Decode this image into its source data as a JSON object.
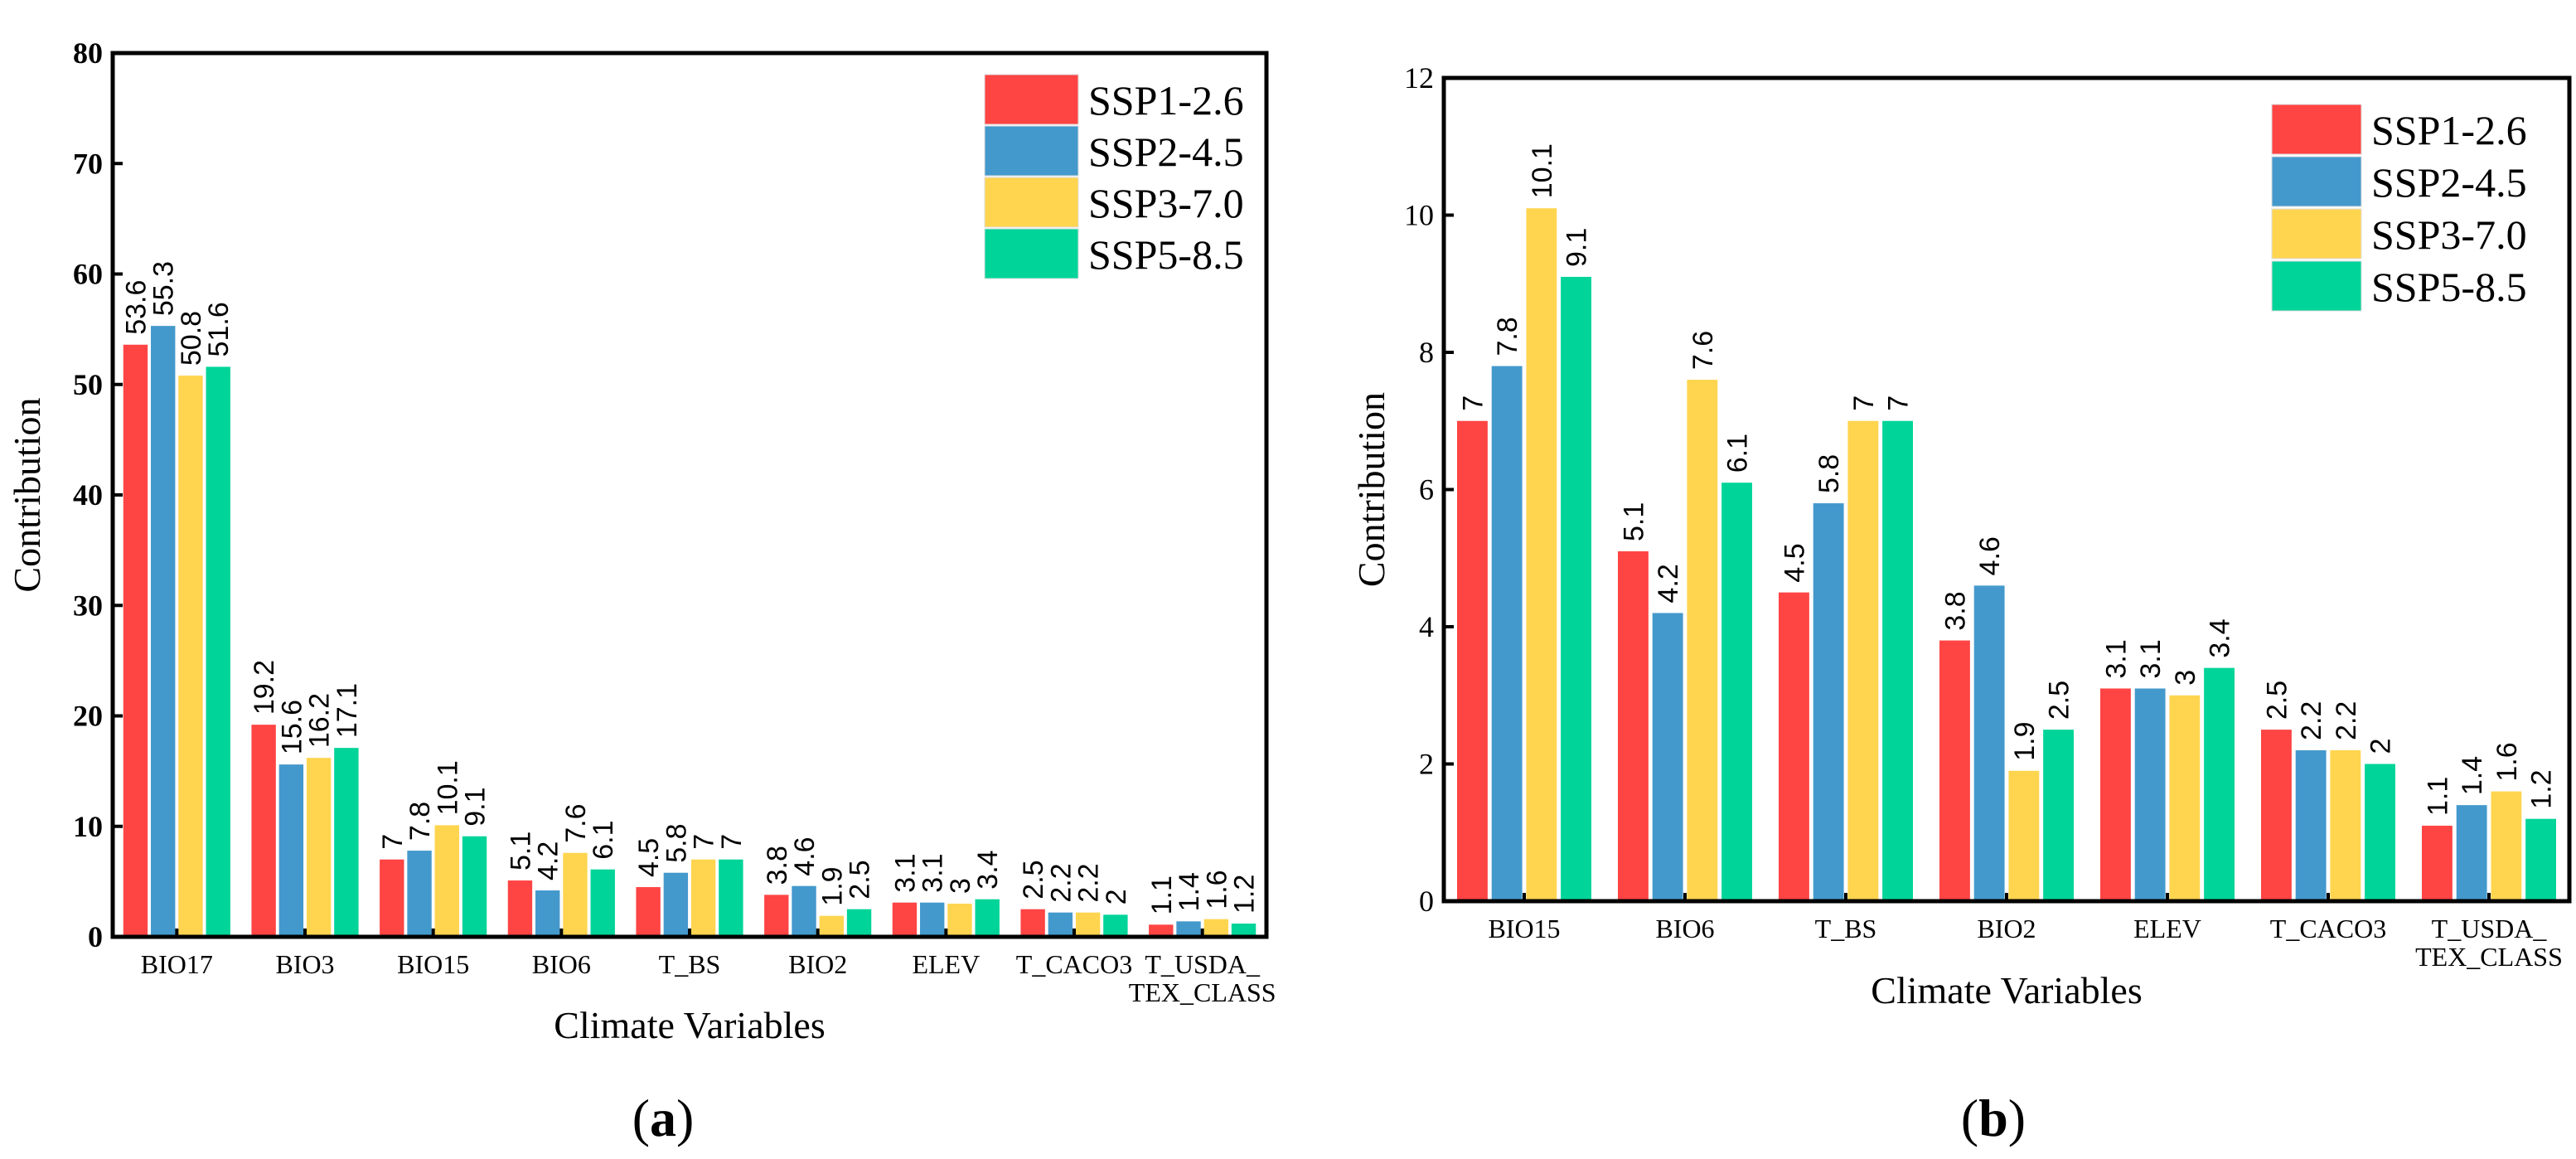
{
  "legend": [
    "SSP1-2.6",
    "SSP2-4.5",
    "SSP3-7.0",
    "SSP5-8.5"
  ],
  "colors": [
    "#FF4444",
    "#4499CC",
    "#FFD54F",
    "#00D499"
  ],
  "chart_data": [
    {
      "type": "bar",
      "caption": "(a)",
      "xlabel": "Climate Variables",
      "ylabel": "Contribution",
      "ylim": [
        0,
        80
      ],
      "yticks": [
        0,
        10,
        20,
        30,
        40,
        50,
        60,
        70,
        80
      ],
      "legend_position": "top-right",
      "categories": [
        "BIO17",
        "BIO3",
        "BIO15",
        "BIO6",
        "T_BS",
        "BIO2",
        "ELEV",
        "T_CACO3",
        "T_USDA_\nTEX_CLASS"
      ],
      "series": [
        {
          "name": "SSP1-2.6",
          "values": [
            53.6,
            19.2,
            7,
            5.1,
            4.5,
            3.8,
            3.1,
            2.5,
            1.1
          ]
        },
        {
          "name": "SSP2-4.5",
          "values": [
            55.3,
            15.6,
            7.8,
            4.2,
            5.8,
            4.6,
            3.1,
            2.2,
            1.4
          ]
        },
        {
          "name": "SSP3-7.0",
          "values": [
            50.8,
            16.2,
            10.1,
            7.6,
            7,
            1.9,
            3,
            2.2,
            1.6
          ]
        },
        {
          "name": "SSP5-8.5",
          "values": [
            51.6,
            17.1,
            9.1,
            6.1,
            7,
            2.5,
            3.4,
            2,
            1.2
          ]
        }
      ]
    },
    {
      "type": "bar",
      "caption": "(b)",
      "xlabel": "Climate Variables",
      "ylabel": "Contribution",
      "ylim": [
        0,
        12
      ],
      "yticks": [
        0,
        2,
        4,
        6,
        8,
        10,
        12
      ],
      "legend_position": "top-right",
      "categories": [
        "BIO15",
        "BIO6",
        "T_BS",
        "BIO2",
        "ELEV",
        "T_CACO3",
        "T_USDA_\nTEX_CLASS"
      ],
      "series": [
        {
          "name": "SSP1-2.6",
          "values": [
            7,
            5.1,
            4.5,
            3.8,
            3.1,
            2.5,
            1.1
          ]
        },
        {
          "name": "SSP2-4.5",
          "values": [
            7.8,
            4.2,
            5.8,
            4.6,
            3.1,
            2.2,
            1.4
          ]
        },
        {
          "name": "SSP3-7.0",
          "values": [
            10.1,
            7.6,
            7,
            1.9,
            3,
            2.2,
            1.6
          ]
        },
        {
          "name": "SSP5-8.5",
          "values": [
            9.1,
            6.1,
            7,
            2.5,
            3.4,
            2,
            1.2
          ]
        }
      ]
    }
  ]
}
